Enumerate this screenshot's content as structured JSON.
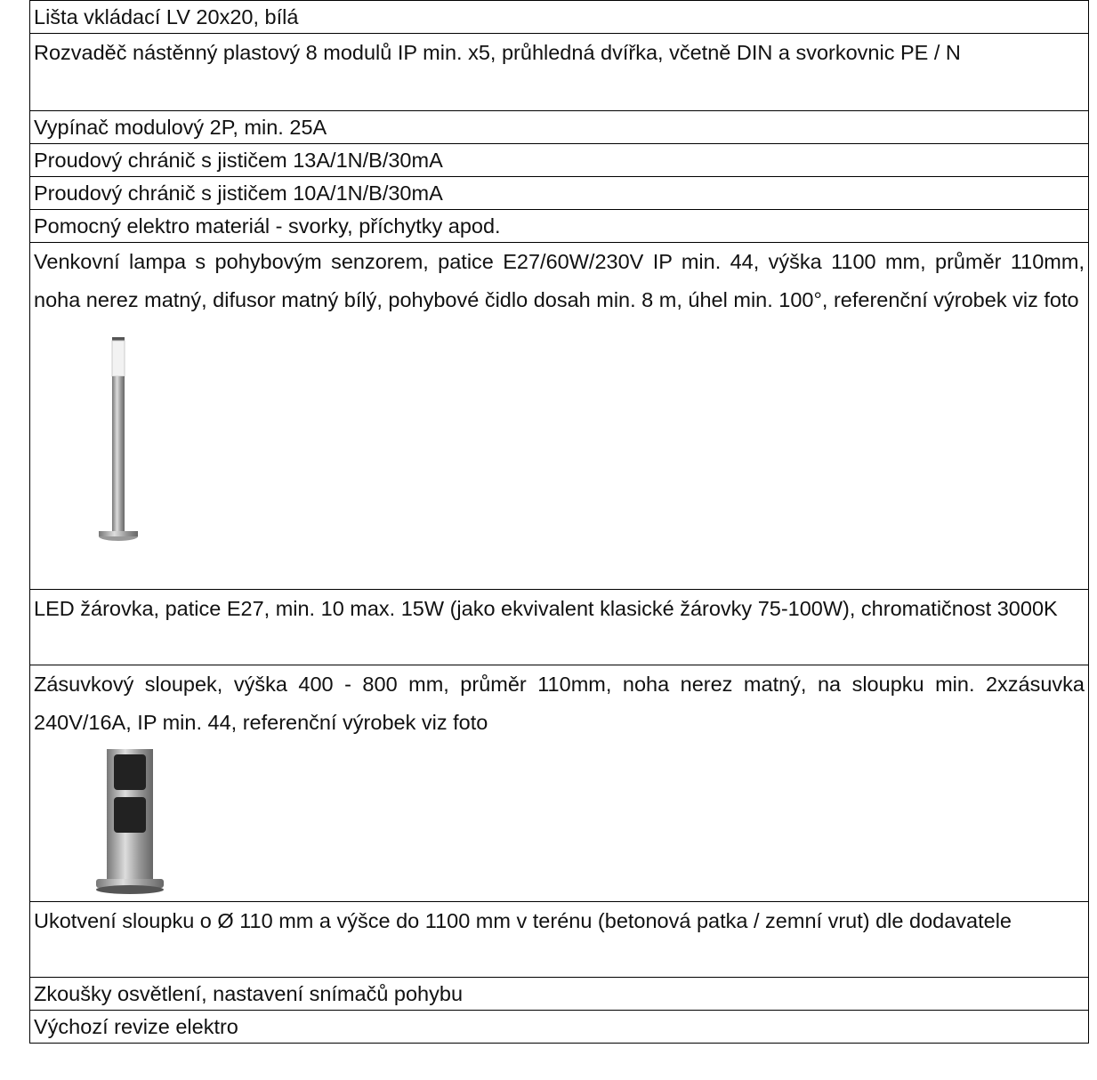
{
  "rows": [
    {
      "text": "Lišta vkládací LV 20x20, bílá"
    },
    {
      "text": "Rozvaděč nástěnný plastový 8 modulů IP min. x5, průhledná dvířka, včetně DIN a svorkovnic PE / N"
    },
    {
      "text": "Vypínač modulový 2P, min. 25A"
    },
    {
      "text": "Proudový chránič s jističem 13A/1N/B/30mA"
    },
    {
      "text": "Proudový chránič s jističem 10A/1N/B/30mA"
    },
    {
      "text": "Pomocný elektro materiál - svorky, příchytky apod."
    },
    {
      "text": "Venkovní lampa s pohybovým senzorem, patice E27/60W/230V IP min. 44, výška 1100 mm, průměr 110mm, noha nerez matný, difusor matný bílý, pohybové čidlo dosah min. 8 m, úhel min. 100°, referenční výrobek viz foto"
    },
    {
      "text": "LED žárovka, patice E27, min. 10 max. 15W (jako ekvivalent klasické žárovky 75-100W), chromatičnost 3000K"
    },
    {
      "text": "Zásuvkový sloupek, výška 400 - 800 mm, průměr 110mm, noha nerez matný, na sloupku min. 2xzásuvka 240V/16A, IP min. 44, referenční výrobek viz foto"
    },
    {
      "text": "Ukotvení sloupku o Ø 110 mm a výšce do 1100 mm v terénu (betonová patka / zemní vrut) dle dodavatele"
    },
    {
      "text": "Zkoušky osvětlení, nastavení snímačů pohybu"
    },
    {
      "text": "Výchozí revize elektro"
    }
  ]
}
